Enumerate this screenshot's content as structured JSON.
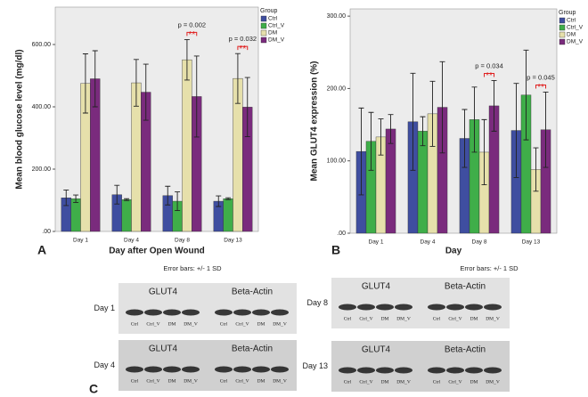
{
  "chart_data": [
    {
      "type": "bar",
      "panel": "A",
      "ylabel": "Mean blood glucose level (mg/dl)",
      "xlabel": "Day after Open Wound",
      "note": "Error bars: +/- 1 SD",
      "legend_title": "Group",
      "categories": [
        "Day 1",
        "Day 4",
        "Day 8",
        "Day 13"
      ],
      "series": [
        {
          "name": "Ctrl",
          "color": "#3f4ea0",
          "values": [
            108,
            118,
            115,
            97
          ],
          "errors": [
            25,
            30,
            30,
            17
          ]
        },
        {
          "name": "Ctrl_V",
          "color": "#3fae49",
          "values": [
            105,
            102,
            97,
            105
          ],
          "errors": [
            12,
            3,
            30,
            3
          ]
        },
        {
          "name": "DM",
          "color": "#e6e0ab",
          "values": [
            475,
            477,
            551,
            491
          ],
          "errors": [
            95,
            75,
            65,
            80
          ]
        },
        {
          "name": "DM_V",
          "color": "#7a2b7d",
          "values": [
            490,
            447,
            433,
            399
          ],
          "errors": [
            90,
            90,
            130,
            95
          ]
        }
      ],
      "ylim": [
        0,
        720
      ],
      "yticks": [
        {
          "value": 0,
          "label": ".00"
        },
        {
          "value": 200,
          "label": "200.00"
        },
        {
          "value": 400,
          "label": "400.00"
        },
        {
          "value": 600,
          "label": "600.00"
        }
      ],
      "annotations": [
        {
          "text": "p = 0.002",
          "stars": "**",
          "category": "Day 8"
        },
        {
          "text": "p = 0.032",
          "stars": "**",
          "category": "Day 13"
        }
      ]
    },
    {
      "type": "bar",
      "panel": "B",
      "ylabel": "Mean GLUT4 expression (%)",
      "xlabel": "Day",
      "note": "Error bars: +/- 1 SD",
      "legend_title": "Group",
      "categories": [
        "Day 1",
        "Day 4",
        "Day 8",
        "Day 13"
      ],
      "series": [
        {
          "name": "Ctrl",
          "color": "#3f4ea0",
          "values": [
            113,
            154,
            131,
            142
          ],
          "errors": [
            60,
            67,
            40,
            65
          ]
        },
        {
          "name": "Ctrl_V",
          "color": "#3fae49",
          "values": [
            127,
            141,
            157,
            191
          ],
          "errors": [
            40,
            20,
            45,
            62
          ]
        },
        {
          "name": "DM",
          "color": "#e6e0ab",
          "values": [
            133,
            165,
            112,
            88
          ],
          "errors": [
            25,
            45,
            45,
            30
          ]
        },
        {
          "name": "DM_V",
          "color": "#7a2b7d",
          "values": [
            144,
            174,
            176,
            143
          ],
          "errors": [
            20,
            63,
            35,
            52
          ]
        }
      ],
      "ylim": [
        0,
        310
      ],
      "yticks": [
        {
          "value": 0,
          "label": ".00"
        },
        {
          "value": 100,
          "label": "100.00"
        },
        {
          "value": 200,
          "label": "200.00"
        },
        {
          "value": 300,
          "label": "300.00"
        }
      ],
      "annotations": [
        {
          "text": "p = 0.034",
          "stars": "**",
          "category": "Day 8"
        },
        {
          "text": "p = 0.045",
          "stars": "**",
          "category": "Day 13"
        }
      ]
    }
  ],
  "panel_c": {
    "panel": "C",
    "blots": [
      {
        "day": "Day 1",
        "left": "GLUT4",
        "right": "Beta-Actin",
        "lanes": [
          "Ctrl",
          "Ctrl_V",
          "DM",
          "DM_V"
        ]
      },
      {
        "day": "Day 4",
        "left": "GLUT4",
        "right": "Beta-Actin",
        "lanes": [
          "Ctrl",
          "Ctrl_V",
          "DM",
          "DM_V"
        ]
      },
      {
        "day": "Day 8",
        "left": "GLUT4",
        "right": "Beta-Actin",
        "lanes": [
          "Ctrl",
          "Ctrl_V",
          "DM",
          "DM_V"
        ]
      },
      {
        "day": "Day 13",
        "left": "GLUT4",
        "right": "Beta-Actin",
        "lanes": [
          "Ctrl",
          "Ctrl_V",
          "DM",
          "DM_V"
        ]
      }
    ]
  }
}
